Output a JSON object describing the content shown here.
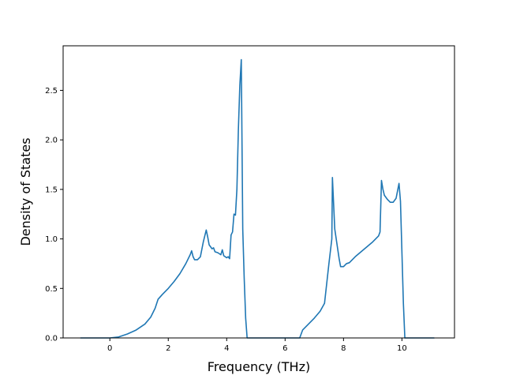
{
  "chart_data": {
    "type": "line",
    "xlabel": "Frequency (THz)",
    "ylabel": "Density of States",
    "xlim": [
      -1.6,
      11.8
    ],
    "ylim": [
      0.0,
      2.95
    ],
    "x_ticks": [
      0,
      2,
      4,
      6,
      8,
      10
    ],
    "y_ticks": [
      0.0,
      0.5,
      1.0,
      1.5,
      2.0,
      2.5
    ],
    "x_tick_labels": [
      "0",
      "2",
      "4",
      "6",
      "8",
      "10"
    ],
    "y_tick_labels": [
      "0.0",
      "0.5",
      "1.0",
      "1.5",
      "2.0",
      "2.5"
    ],
    "grid": false,
    "series": [
      {
        "color": "#1f77b4",
        "x": [
          -1.0,
          0.0,
          0.3,
          0.6,
          0.9,
          1.2,
          1.4,
          1.55,
          1.65,
          1.8,
          2.0,
          2.2,
          2.4,
          2.6,
          2.75,
          2.8,
          2.85,
          2.9,
          3.0,
          3.1,
          3.2,
          3.3,
          3.35,
          3.4,
          3.5,
          3.55,
          3.6,
          3.7,
          3.8,
          3.85,
          3.9,
          4.0,
          4.05,
          4.1,
          4.15,
          4.2,
          4.25,
          4.3,
          4.35,
          4.4,
          4.45,
          4.5,
          4.55,
          4.6,
          4.65,
          4.7,
          4.75,
          4.82,
          5.0,
          6.0,
          6.5,
          6.6,
          6.8,
          7.0,
          7.2,
          7.35,
          7.5,
          7.6,
          7.62,
          7.7,
          7.8,
          7.85,
          7.9,
          8.0,
          8.1,
          8.2,
          8.4,
          8.6,
          8.8,
          9.0,
          9.2,
          9.25,
          9.3,
          9.35,
          9.4,
          9.5,
          9.6,
          9.7,
          9.8,
          9.9,
          9.95,
          10.05,
          10.1,
          10.15,
          10.5,
          11.1
        ],
        "y": [
          0.0,
          0.0,
          0.01,
          0.04,
          0.08,
          0.14,
          0.21,
          0.3,
          0.39,
          0.44,
          0.5,
          0.57,
          0.65,
          0.75,
          0.84,
          0.88,
          0.82,
          0.79,
          0.79,
          0.82,
          0.97,
          1.09,
          1.02,
          0.94,
          0.9,
          0.91,
          0.87,
          0.86,
          0.84,
          0.89,
          0.83,
          0.81,
          0.82,
          0.8,
          1.04,
          1.07,
          1.25,
          1.24,
          1.5,
          2.1,
          2.55,
          2.81,
          1.1,
          0.6,
          0.2,
          0.0,
          0.0,
          0.0,
          0.0,
          0.0,
          0.0,
          0.08,
          0.14,
          0.2,
          0.27,
          0.35,
          0.75,
          1.0,
          1.62,
          1.1,
          0.9,
          0.8,
          0.72,
          0.72,
          0.75,
          0.76,
          0.82,
          0.87,
          0.92,
          0.97,
          1.03,
          1.07,
          1.59,
          1.5,
          1.44,
          1.4,
          1.37,
          1.37,
          1.41,
          1.56,
          1.38,
          0.35,
          0.0,
          0.0,
          0.0,
          0.0
        ]
      }
    ]
  }
}
